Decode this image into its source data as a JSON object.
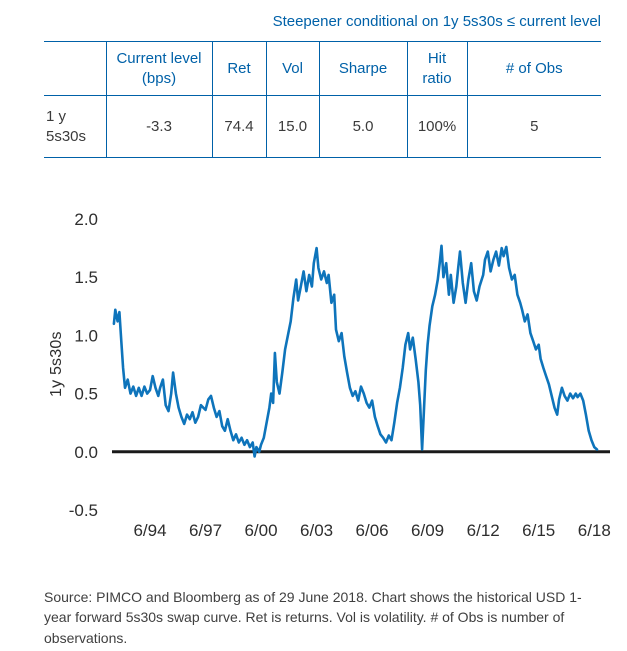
{
  "title": "Steepener conditional on 1y 5s30s ≤ current level",
  "table": {
    "headers": [
      "",
      "Current level (bps)",
      "Ret",
      "Vol",
      "Sharpe",
      "Hit ratio",
      "# of Obs"
    ],
    "row": {
      "label": "1 y 5s30s",
      "values": [
        "-3.3",
        "74.4",
        "15.0",
        "5.0",
        "100%",
        "5"
      ]
    }
  },
  "chart_data": {
    "type": "line",
    "title": "",
    "xlabel": "",
    "ylabel": "1y 5s30s",
    "xlim": [
      1992.4,
      2019.3
    ],
    "ylim": [
      -0.5,
      2.0
    ],
    "grid": false,
    "zero_line": true,
    "legend": "none",
    "line_color": "#0E74BB",
    "axis_color": "#1A1A1A",
    "x_ticks": [
      {
        "value": 1994.45,
        "label": "6/94"
      },
      {
        "value": 1997.45,
        "label": "6/97"
      },
      {
        "value": 2000.45,
        "label": "6/00"
      },
      {
        "value": 2003.45,
        "label": "6/03"
      },
      {
        "value": 2006.45,
        "label": "6/06"
      },
      {
        "value": 2009.45,
        "label": "6/09"
      },
      {
        "value": 2012.45,
        "label": "6/12"
      },
      {
        "value": 2015.45,
        "label": "6/15"
      },
      {
        "value": 2018.45,
        "label": "6/18"
      }
    ],
    "y_ticks": [
      {
        "value": 2.0,
        "label": "2.0"
      },
      {
        "value": 1.5,
        "label": "1.5"
      },
      {
        "value": 1.0,
        "label": "1.0"
      },
      {
        "value": 0.5,
        "label": "0.5"
      },
      {
        "value": 0.0,
        "label": "0.0"
      },
      {
        "value": -0.5,
        "label": "-0.5"
      }
    ],
    "series": [
      {
        "name": "USD 1-year forward 5s30s swap curve",
        "points": [
          [
            1992.5,
            1.1
          ],
          [
            1992.58,
            1.22
          ],
          [
            1992.7,
            1.12
          ],
          [
            1992.8,
            1.2
          ],
          [
            1992.9,
            0.95
          ],
          [
            1993.0,
            0.72
          ],
          [
            1993.1,
            0.55
          ],
          [
            1993.25,
            0.62
          ],
          [
            1993.4,
            0.5
          ],
          [
            1993.55,
            0.56
          ],
          [
            1993.7,
            0.48
          ],
          [
            1993.85,
            0.55
          ],
          [
            1994.0,
            0.48
          ],
          [
            1994.15,
            0.56
          ],
          [
            1994.3,
            0.5
          ],
          [
            1994.45,
            0.53
          ],
          [
            1994.6,
            0.65
          ],
          [
            1994.75,
            0.55
          ],
          [
            1994.9,
            0.48
          ],
          [
            1995.0,
            0.55
          ],
          [
            1995.15,
            0.62
          ],
          [
            1995.3,
            0.4
          ],
          [
            1995.45,
            0.35
          ],
          [
            1995.6,
            0.5
          ],
          [
            1995.7,
            0.68
          ],
          [
            1995.85,
            0.5
          ],
          [
            1996.0,
            0.38
          ],
          [
            1996.15,
            0.3
          ],
          [
            1996.3,
            0.24
          ],
          [
            1996.45,
            0.32
          ],
          [
            1996.6,
            0.28
          ],
          [
            1996.75,
            0.34
          ],
          [
            1996.9,
            0.25
          ],
          [
            1997.05,
            0.3
          ],
          [
            1997.2,
            0.4
          ],
          [
            1997.45,
            0.36
          ],
          [
            1997.6,
            0.45
          ],
          [
            1997.75,
            0.48
          ],
          [
            1997.9,
            0.38
          ],
          [
            1998.05,
            0.3
          ],
          [
            1998.2,
            0.35
          ],
          [
            1998.35,
            0.22
          ],
          [
            1998.5,
            0.18
          ],
          [
            1998.65,
            0.28
          ],
          [
            1998.8,
            0.18
          ],
          [
            1998.95,
            0.1
          ],
          [
            1999.1,
            0.15
          ],
          [
            1999.25,
            0.08
          ],
          [
            1999.4,
            0.12
          ],
          [
            1999.55,
            0.06
          ],
          [
            1999.7,
            0.1
          ],
          [
            1999.85,
            0.04
          ],
          [
            2000.0,
            0.08
          ],
          [
            2000.1,
            -0.04
          ],
          [
            2000.2,
            0.04
          ],
          [
            2000.35,
            0.0
          ],
          [
            2000.45,
            0.06
          ],
          [
            2000.6,
            0.12
          ],
          [
            2000.75,
            0.25
          ],
          [
            2000.9,
            0.38
          ],
          [
            2001.0,
            0.5
          ],
          [
            2001.1,
            0.42
          ],
          [
            2001.2,
            0.85
          ],
          [
            2001.3,
            0.6
          ],
          [
            2001.45,
            0.5
          ],
          [
            2001.6,
            0.68
          ],
          [
            2001.75,
            0.88
          ],
          [
            2001.9,
            1.0
          ],
          [
            2002.05,
            1.12
          ],
          [
            2002.2,
            1.32
          ],
          [
            2002.35,
            1.48
          ],
          [
            2002.45,
            1.3
          ],
          [
            2002.6,
            1.42
          ],
          [
            2002.75,
            1.55
          ],
          [
            2002.9,
            1.38
          ],
          [
            2003.05,
            1.52
          ],
          [
            2003.2,
            1.42
          ],
          [
            2003.3,
            1.62
          ],
          [
            2003.45,
            1.75
          ],
          [
            2003.55,
            1.58
          ],
          [
            2003.7,
            1.48
          ],
          [
            2003.85,
            1.55
          ],
          [
            2004.0,
            1.45
          ],
          [
            2004.1,
            1.52
          ],
          [
            2004.25,
            1.28
          ],
          [
            2004.4,
            1.35
          ],
          [
            2004.5,
            1.05
          ],
          [
            2004.65,
            0.95
          ],
          [
            2004.8,
            1.02
          ],
          [
            2004.95,
            0.82
          ],
          [
            2005.1,
            0.68
          ],
          [
            2005.25,
            0.55
          ],
          [
            2005.4,
            0.48
          ],
          [
            2005.55,
            0.52
          ],
          [
            2005.7,
            0.44
          ],
          [
            2005.85,
            0.56
          ],
          [
            2006.0,
            0.5
          ],
          [
            2006.15,
            0.42
          ],
          [
            2006.3,
            0.38
          ],
          [
            2006.45,
            0.44
          ],
          [
            2006.6,
            0.3
          ],
          [
            2006.75,
            0.22
          ],
          [
            2006.9,
            0.15
          ],
          [
            2007.05,
            0.12
          ],
          [
            2007.2,
            0.08
          ],
          [
            2007.35,
            0.14
          ],
          [
            2007.5,
            0.1
          ],
          [
            2007.65,
            0.25
          ],
          [
            2007.8,
            0.42
          ],
          [
            2007.95,
            0.55
          ],
          [
            2008.1,
            0.72
          ],
          [
            2008.25,
            0.92
          ],
          [
            2008.4,
            1.02
          ],
          [
            2008.5,
            0.88
          ],
          [
            2008.65,
            0.98
          ],
          [
            2008.8,
            0.8
          ],
          [
            2008.95,
            0.6
          ],
          [
            2009.05,
            0.4
          ],
          [
            2009.15,
            0.02
          ],
          [
            2009.25,
            0.35
          ],
          [
            2009.35,
            0.7
          ],
          [
            2009.45,
            0.92
          ],
          [
            2009.55,
            1.08
          ],
          [
            2009.7,
            1.25
          ],
          [
            2009.85,
            1.35
          ],
          [
            2010.0,
            1.48
          ],
          [
            2010.1,
            1.62
          ],
          [
            2010.2,
            1.77
          ],
          [
            2010.3,
            1.5
          ],
          [
            2010.45,
            1.62
          ],
          [
            2010.6,
            1.35
          ],
          [
            2010.7,
            1.52
          ],
          [
            2010.85,
            1.28
          ],
          [
            2011.0,
            1.42
          ],
          [
            2011.1,
            1.58
          ],
          [
            2011.2,
            1.72
          ],
          [
            2011.35,
            1.45
          ],
          [
            2011.5,
            1.28
          ],
          [
            2011.65,
            1.48
          ],
          [
            2011.8,
            1.62
          ],
          [
            2011.95,
            1.38
          ],
          [
            2012.1,
            1.3
          ],
          [
            2012.25,
            1.42
          ],
          [
            2012.45,
            1.52
          ],
          [
            2012.55,
            1.65
          ],
          [
            2012.7,
            1.72
          ],
          [
            2012.85,
            1.55
          ],
          [
            2013.0,
            1.65
          ],
          [
            2013.15,
            1.72
          ],
          [
            2013.3,
            1.6
          ],
          [
            2013.45,
            1.75
          ],
          [
            2013.55,
            1.68
          ],
          [
            2013.7,
            1.76
          ],
          [
            2013.85,
            1.58
          ],
          [
            2014.0,
            1.48
          ],
          [
            2014.15,
            1.52
          ],
          [
            2014.3,
            1.35
          ],
          [
            2014.45,
            1.28
          ],
          [
            2014.55,
            1.22
          ],
          [
            2014.7,
            1.12
          ],
          [
            2014.85,
            1.18
          ],
          [
            2015.0,
            1.02
          ],
          [
            2015.15,
            0.95
          ],
          [
            2015.3,
            0.88
          ],
          [
            2015.45,
            0.92
          ],
          [
            2015.55,
            0.8
          ],
          [
            2015.7,
            0.72
          ],
          [
            2015.85,
            0.65
          ],
          [
            2016.0,
            0.58
          ],
          [
            2016.15,
            0.48
          ],
          [
            2016.3,
            0.38
          ],
          [
            2016.45,
            0.32
          ],
          [
            2016.55,
            0.45
          ],
          [
            2016.7,
            0.55
          ],
          [
            2016.85,
            0.48
          ],
          [
            2017.0,
            0.44
          ],
          [
            2017.15,
            0.5
          ],
          [
            2017.3,
            0.46
          ],
          [
            2017.45,
            0.5
          ],
          [
            2017.55,
            0.47
          ],
          [
            2017.7,
            0.5
          ],
          [
            2017.85,
            0.44
          ],
          [
            2018.0,
            0.32
          ],
          [
            2018.15,
            0.18
          ],
          [
            2018.3,
            0.1
          ],
          [
            2018.45,
            0.04
          ],
          [
            2018.6,
            0.02
          ]
        ]
      }
    ]
  },
  "footer": {
    "source_text": "Source: PIMCO and Bloomberg as of 29 June 2018. Chart shows the historical USD 1-year forward 5s30s swap curve. Ret is returns. Vol is volatility. # of Obs is number of observations."
  },
  "colors": {
    "accent_blue": "#0061A8",
    "line_blue": "#0E74BB",
    "text_dark": "#3B3B3B"
  }
}
